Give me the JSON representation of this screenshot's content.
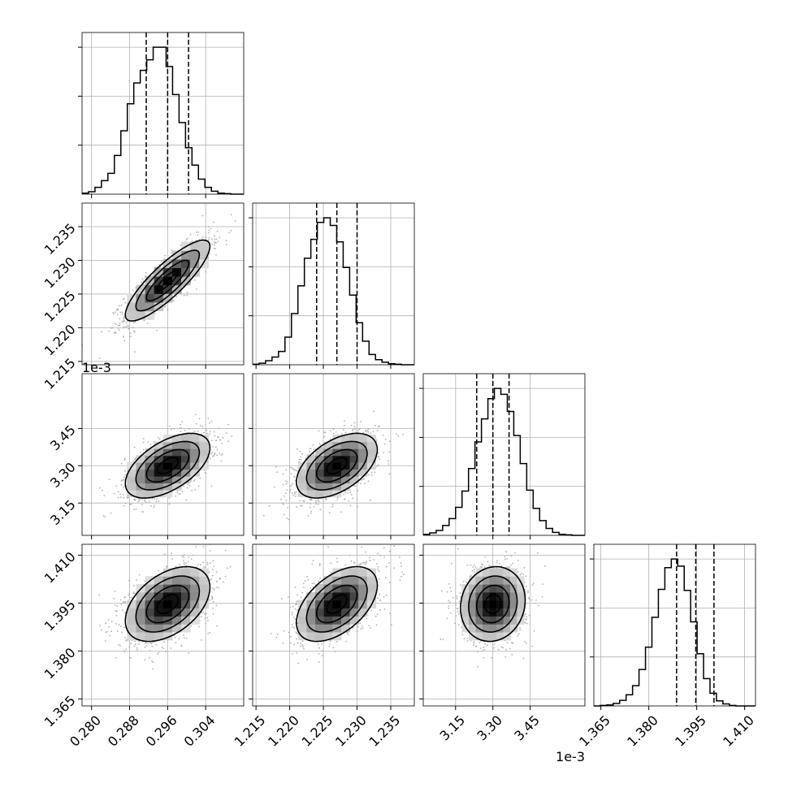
{
  "chart_data": {
    "type": "corner",
    "title": "",
    "grid": true,
    "parameters": [
      {
        "name": "",
        "range": [
          0.278,
          0.312
        ],
        "ticks": [
          0.28,
          0.288,
          0.296,
          0.304
        ],
        "tick_labels": [
          "0.280",
          "0.288",
          "0.296",
          "0.304"
        ],
        "offset_label": "",
        "quantiles": [
          0.2915,
          0.296,
          0.3004
        ],
        "hist_bin_edges_start": 0.278,
        "hist_bin_width": 0.00136,
        "hist_counts": [
          0.2,
          0.5,
          1.4,
          2.8,
          4.3,
          8.0,
          13.1,
          18.7,
          23.0,
          25.6,
          27.8,
          30.4,
          30.4,
          26.4,
          20.6,
          14.8,
          9.6,
          6.0,
          3.1,
          1.4,
          0.6,
          0.2,
          0.1,
          0.0,
          0.0
        ]
      },
      {
        "name": "",
        "range": [
          1.2145,
          1.2385
        ],
        "ticks": [
          1.215,
          1.22,
          1.225,
          1.23,
          1.235
        ],
        "tick_labels": [
          "1.215",
          "1.220",
          "1.225",
          "1.230",
          "1.235"
        ],
        "offset_label": "",
        "quantiles": [
          1.224,
          1.227,
          1.23
        ],
        "hist_bin_edges_start": 1.2145,
        "hist_bin_width": 0.00096,
        "hist_counts": [
          0.1,
          0.3,
          0.8,
          1.5,
          2.6,
          5.4,
          10.0,
          15.4,
          20.8,
          24.5,
          27.8,
          28.7,
          27.2,
          24.0,
          19.0,
          13.6,
          8.2,
          4.6,
          2.0,
          1.0,
          0.5,
          0.2,
          0.1,
          0.0,
          0.0
        ]
      },
      {
        "name": "",
        "range": [
          3.02,
          3.67
        ],
        "ticks": [
          3.15,
          3.3,
          3.45
        ],
        "tick_labels": [
          "3.15",
          "3.30",
          "3.45"
        ],
        "offset_label": "1e-3",
        "quantiles": [
          3.235,
          3.3,
          3.365
        ],
        "hist_bin_edges_start": 3.02,
        "hist_bin_width": 0.026,
        "hist_counts": [
          0.2,
          0.5,
          1.0,
          2.0,
          3.4,
          5.7,
          9.0,
          13.6,
          19.0,
          23.7,
          27.8,
          29.9,
          28.7,
          25.2,
          20.3,
          14.6,
          9.2,
          5.5,
          3.0,
          1.4,
          0.6,
          0.2,
          0.1,
          0.0,
          0.0
        ]
      },
      {
        "name": "",
        "range": [
          1.3628,
          1.4134
        ],
        "ticks": [
          1.365,
          1.38,
          1.395,
          1.41
        ],
        "tick_labels": [
          "1.365",
          "1.380",
          "1.395",
          "1.410"
        ],
        "offset_label": "",
        "quantiles": [
          1.3887,
          1.3947,
          1.4004
        ],
        "hist_bin_edges_start": 1.3628,
        "hist_bin_width": 0.00202,
        "hist_counts": [
          0.0,
          0.1,
          0.2,
          0.5,
          1.1,
          2.2,
          4.0,
          7.2,
          11.6,
          17.5,
          23.0,
          27.3,
          29.0,
          27.6,
          22.8,
          16.6,
          10.3,
          5.4,
          2.5,
          1.0,
          0.4,
          0.1,
          0.0,
          0.0,
          0.0
        ]
      }
    ],
    "pairs": [
      {
        "x": 0,
        "y": 1,
        "correlation": 0.85
      },
      {
        "x": 0,
        "y": 2,
        "correlation": 0.55
      },
      {
        "x": 1,
        "y": 2,
        "correlation": 0.5
      },
      {
        "x": 0,
        "y": 3,
        "correlation": 0.45
      },
      {
        "x": 1,
        "y": 3,
        "correlation": 0.5
      },
      {
        "x": 2,
        "y": 3,
        "correlation": 0.1
      }
    ]
  }
}
